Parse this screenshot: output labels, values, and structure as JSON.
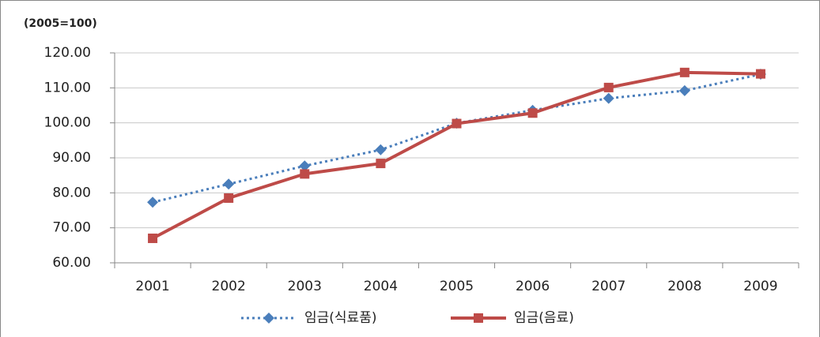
{
  "chart_data": {
    "type": "line",
    "y_label": "(2005=100)",
    "categories": [
      "2001",
      "2002",
      "2003",
      "2004",
      "2005",
      "2006",
      "2007",
      "2008",
      "2009"
    ],
    "series": [
      {
        "name": "임금(식료품)",
        "color": "#4a7ebb",
        "dash": "dotted",
        "marker": "diamond",
        "values": [
          77.3,
          82.5,
          87.7,
          92.3,
          99.9,
          103.6,
          107.0,
          109.2,
          113.9
        ]
      },
      {
        "name": "임금(음료)",
        "color": "#be4b48",
        "dash": "solid",
        "marker": "square",
        "values": [
          67.0,
          78.5,
          85.4,
          88.4,
          99.8,
          102.8,
          110.1,
          114.4,
          114.0
        ]
      }
    ],
    "ylim": [
      60,
      120
    ],
    "yticks": [
      {
        "value": 60,
        "label": "60.00"
      },
      {
        "value": 70,
        "label": "70.00"
      },
      {
        "value": 80,
        "label": "80.00"
      },
      {
        "value": 90,
        "label": "90.00"
      },
      {
        "value": 100,
        "label": "100.00"
      },
      {
        "value": 110,
        "label": "110.00"
      },
      {
        "value": 120,
        "label": "120.00"
      }
    ],
    "grid": true,
    "legend": "bottom"
  }
}
